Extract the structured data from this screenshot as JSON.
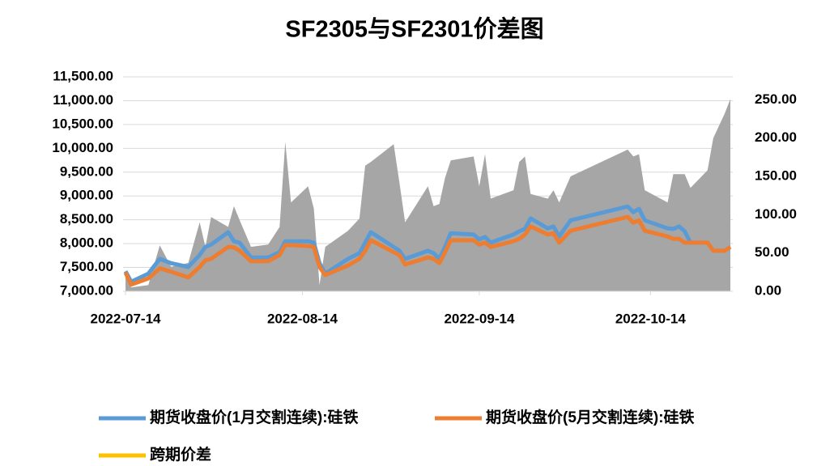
{
  "chart_data": {
    "type": "line",
    "title": "SF2305与SF2301价差图",
    "x": [
      "2022-07-14",
      "2022-07-15",
      "2022-07-18",
      "2022-07-20",
      "2022-07-22",
      "2022-07-25",
      "2022-07-27",
      "2022-07-28",
      "2022-07-29",
      "2022-08-01",
      "2022-08-02",
      "2022-08-03",
      "2022-08-05",
      "2022-08-08",
      "2022-08-10",
      "2022-08-11",
      "2022-08-12",
      "2022-08-15",
      "2022-08-16",
      "2022-08-17",
      "2022-08-18",
      "2022-08-22",
      "2022-08-24",
      "2022-08-25",
      "2022-08-26",
      "2022-08-30",
      "2022-08-31",
      "2022-09-01",
      "2022-09-05",
      "2022-09-06",
      "2022-09-07",
      "2022-09-08",
      "2022-09-09",
      "2022-09-13",
      "2022-09-14",
      "2022-09-15",
      "2022-09-16",
      "2022-09-20",
      "2022-09-21",
      "2022-09-22",
      "2022-09-23",
      "2022-09-26",
      "2022-09-27",
      "2022-09-28",
      "2022-09-30",
      "2022-10-10",
      "2022-10-11",
      "2022-10-12",
      "2022-10-13",
      "2022-10-17",
      "2022-10-18",
      "2022-10-19",
      "2022-10-20",
      "2022-10-21",
      "2022-10-24",
      "2022-10-25",
      "2022-10-27",
      "2022-10-28"
    ],
    "xlim": [
      "2022-07-14",
      "2022-10-28"
    ],
    "xticks": [
      "2022-07-14",
      "2022-08-14",
      "2022-09-14",
      "2022-10-14"
    ],
    "ylim": [
      7000,
      11500
    ],
    "yticks": [
      {
        "value": 7000,
        "label": "7,000.00"
      },
      {
        "value": 7500,
        "label": "7,500.00"
      },
      {
        "value": 8000,
        "label": "8,000.00"
      },
      {
        "value": 8500,
        "label": "8,500.00"
      },
      {
        "value": 9000,
        "label": "9,000.00"
      },
      {
        "value": 9500,
        "label": "9,500.00"
      },
      {
        "value": 10000,
        "label": "10,000.00"
      },
      {
        "value": 10500,
        "label": "10,500.00"
      },
      {
        "value": 11000,
        "label": "11,000.00"
      },
      {
        "value": 11500,
        "label": "11,500.00"
      }
    ],
    "y2lim": [
      0,
      280
    ],
    "y2ticks": [
      {
        "value": 0,
        "label": "0.00"
      },
      {
        "value": 50,
        "label": "50.00"
      },
      {
        "value": 100,
        "label": "100.00"
      },
      {
        "value": 150,
        "label": "150.00"
      },
      {
        "value": 200,
        "label": "200.00"
      },
      {
        "value": 250,
        "label": "250.00"
      }
    ],
    "grid": true,
    "legend": "bottom",
    "series": [
      {
        "name": "期货收盘价(1月交割连续):硅铁",
        "color": "#5b9bd5",
        "values": [
          7420,
          7200,
          7370,
          7680,
          7590,
          7510,
          7760,
          7930,
          7980,
          8240,
          8050,
          8020,
          7710,
          7710,
          7820,
          8050,
          8050,
          8050,
          8020,
          7590,
          7370,
          7680,
          7800,
          8020,
          8240,
          7930,
          7850,
          7680,
          7850,
          7800,
          7680,
          7930,
          8220,
          8190,
          8090,
          8140,
          8020,
          8190,
          8260,
          8310,
          8530,
          8320,
          8360,
          8150,
          8490,
          8780,
          8660,
          8730,
          8490,
          8320,
          8310,
          8360,
          8260,
          8020,
          null,
          null,
          null,
          null
        ]
      },
      {
        "name": "期货收盘价(5月交割连续):硅铁",
        "color": "#ed7d31",
        "values": [
          7390,
          7140,
          7270,
          7480,
          7410,
          7290,
          7510,
          7650,
          7680,
          7930,
          7920,
          7850,
          7630,
          7630,
          7760,
          7970,
          7970,
          7950,
          7930,
          7510,
          7340,
          7540,
          7680,
          7850,
          8070,
          7820,
          7760,
          7560,
          7710,
          7680,
          7590,
          7820,
          8070,
          8070,
          7980,
          8020,
          7930,
          8050,
          8100,
          8190,
          8360,
          8190,
          8220,
          8020,
          8270,
          8560,
          8440,
          8490,
          8270,
          8150,
          8100,
          8100,
          8020,
          8020,
          8020,
          7850,
          7850,
          7930
        ]
      },
      {
        "name": "跨期价差",
        "color": "#ffc000",
        "area_color": "#a6a6a6",
        "axis": "y2",
        "values": [
          26,
          5,
          8,
          60,
          32,
          37,
          90,
          58,
          97,
          84,
          111,
          93,
          58,
          61,
          84,
          195,
          116,
          137,
          108,
          8,
          58,
          79,
          95,
          164,
          169,
          192,
          142,
          90,
          137,
          111,
          114,
          148,
          171,
          176,
          137,
          179,
          121,
          132,
          169,
          176,
          127,
          121,
          132,
          116,
          150,
          185,
          176,
          179,
          132,
          116,
          153,
          153,
          153,
          135,
          158,
          200,
          232,
          251
        ]
      }
    ]
  }
}
